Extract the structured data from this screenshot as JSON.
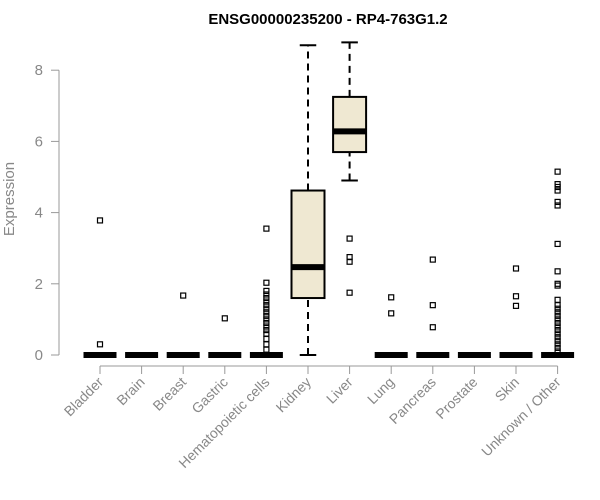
{
  "chart_data": {
    "type": "boxplot",
    "title": "ENSG00000235200 - RP4-763G1.2",
    "ylabel": "Expression",
    "xlabel": "",
    "ylim": [
      0,
      8.8
    ],
    "yticks": [
      "0",
      "2",
      "4",
      "6",
      "8"
    ],
    "grid": false,
    "box_fill": "#efe8d2",
    "categories": [
      "Bladder",
      "Brain",
      "Breast",
      "Gastric",
      "Hematopoietic cells",
      "Kidney",
      "Liver",
      "Lung",
      "Pancreas",
      "Prostate",
      "Skin",
      "Unknown / Other"
    ],
    "boxes": [
      {
        "category": "Bladder",
        "min": 0,
        "q1": 0,
        "median": 0,
        "q3": 0,
        "max": 0,
        "outliers": [
          0.3,
          3.78
        ]
      },
      {
        "category": "Brain",
        "min": 0,
        "q1": 0,
        "median": 0,
        "q3": 0,
        "max": 0,
        "outliers": []
      },
      {
        "category": "Breast",
        "min": 0,
        "q1": 0,
        "median": 0,
        "q3": 0,
        "max": 0,
        "outliers": [
          1.67
        ]
      },
      {
        "category": "Gastric",
        "min": 0,
        "q1": 0,
        "median": 0,
        "q3": 0,
        "max": 0,
        "outliers": [
          1.03
        ]
      },
      {
        "category": "Hematopoietic cells",
        "min": 0,
        "q1": 0,
        "median": 0,
        "q3": 0,
        "max": 0,
        "outliers": [
          0.15,
          0.3,
          0.45,
          0.6,
          0.7,
          0.8,
          0.9,
          1.0,
          1.1,
          1.2,
          1.3,
          1.4,
          1.5,
          1.6,
          1.7,
          1.8,
          2.03,
          3.55
        ]
      },
      {
        "category": "Kidney",
        "min": 0,
        "q1": 1.6,
        "median": 2.47,
        "q3": 4.62,
        "max": 8.7,
        "outliers": []
      },
      {
        "category": "Liver",
        "min": 4.9,
        "q1": 5.7,
        "median": 6.28,
        "q3": 7.25,
        "max": 8.78,
        "outliers": [
          1.75,
          2.62,
          2.75,
          3.27
        ]
      },
      {
        "category": "Lung",
        "min": 0,
        "q1": 0,
        "median": 0,
        "q3": 0,
        "max": 0,
        "outliers": [
          1.17,
          1.62
        ]
      },
      {
        "category": "Pancreas",
        "min": 0,
        "q1": 0,
        "median": 0,
        "q3": 0,
        "max": 0,
        "outliers": [
          0.78,
          1.4,
          2.68
        ]
      },
      {
        "category": "Prostate",
        "min": 0,
        "q1": 0,
        "median": 0,
        "q3": 0,
        "max": 0,
        "outliers": []
      },
      {
        "category": "Skin",
        "min": 0,
        "q1": 0,
        "median": 0,
        "q3": 0,
        "max": 0,
        "outliers": [
          1.38,
          1.65,
          2.43
        ]
      },
      {
        "category": "Unknown / Other",
        "min": 0,
        "q1": 0,
        "median": 0,
        "q3": 0,
        "max": 0,
        "outliers": [
          0.1,
          0.2,
          0.3,
          0.4,
          0.5,
          0.6,
          0.7,
          0.8,
          0.9,
          1.0,
          1.1,
          1.2,
          1.3,
          1.4,
          1.55,
          1.95,
          2.0,
          2.35,
          3.12,
          4.2,
          4.3,
          4.62,
          4.72,
          4.8,
          5.15
        ]
      }
    ]
  }
}
